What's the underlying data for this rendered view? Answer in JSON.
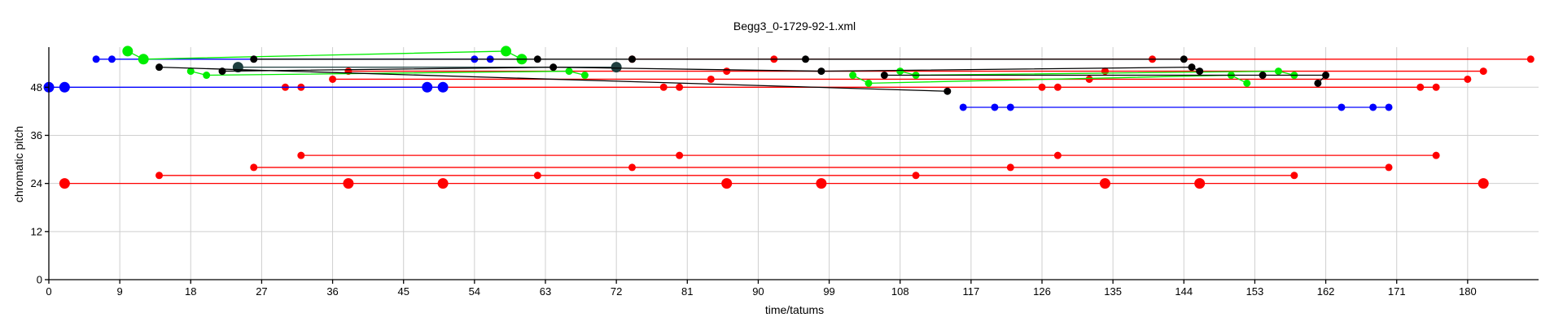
{
  "chart_data": {
    "type": "scatter",
    "title": "Begg3_0-1729-92-1.xml",
    "xlabel": "time/tatums",
    "ylabel": "chromatic pitch",
    "xlim": [
      0,
      189
    ],
    "ylim": [
      0,
      58
    ],
    "x_ticks": [
      0,
      9,
      18,
      27,
      36,
      45,
      54,
      63,
      72,
      81,
      90,
      99,
      108,
      117,
      126,
      135,
      144,
      153,
      162,
      171,
      180
    ],
    "y_ticks": [
      0,
      12,
      24,
      36,
      48
    ],
    "grid": true,
    "colors": {
      "red": "#ff0000",
      "blue": "#0000ff",
      "green": "#00ee00",
      "black": "#000000",
      "dark": "#1f3f3f",
      "grid": "#cfcfcf"
    },
    "series": [
      {
        "color": "red",
        "small_markers": true,
        "points": [
          [
            74,
            55
          ],
          [
            92,
            55
          ],
          [
            140,
            55
          ],
          [
            188,
            55
          ]
        ]
      },
      {
        "color": "red",
        "small_markers": true,
        "points": [
          [
            38,
            52
          ],
          [
            86,
            52
          ],
          [
            134,
            52
          ],
          [
            182,
            52
          ]
        ]
      },
      {
        "color": "red",
        "small_markers": true,
        "points": [
          [
            36,
            50
          ],
          [
            84,
            50
          ],
          [
            132,
            50
          ],
          [
            180,
            50
          ]
        ]
      },
      {
        "color": "red",
        "small_markers": true,
        "points": [
          [
            30,
            48
          ],
          [
            32,
            48
          ],
          [
            78,
            48
          ],
          [
            80,
            48
          ],
          [
            126,
            48
          ],
          [
            128,
            48
          ],
          [
            174,
            48
          ],
          [
            176,
            48
          ]
        ]
      },
      {
        "color": "blue",
        "small_markers": true,
        "points": [
          [
            6,
            55
          ],
          [
            8,
            55
          ],
          [
            54,
            55
          ],
          [
            56,
            55
          ]
        ]
      },
      {
        "color": "blue",
        "small_markers": false,
        "points": [
          [
            0,
            48
          ],
          [
            2,
            48
          ],
          [
            48,
            48
          ],
          [
            50,
            48
          ]
        ]
      },
      {
        "color": "blue",
        "small_markers": true,
        "points": [
          [
            116,
            43
          ],
          [
            120,
            43
          ],
          [
            122,
            43
          ],
          [
            164,
            43
          ],
          [
            168,
            43
          ],
          [
            170,
            43
          ]
        ]
      },
      {
        "color": "green",
        "small_markers": false,
        "points": [
          [
            10,
            57
          ],
          [
            12,
            55
          ],
          [
            58,
            57
          ],
          [
            60,
            55
          ]
        ]
      },
      {
        "color": "green",
        "small_markers": true,
        "points": [
          [
            18,
            52
          ],
          [
            20,
            51
          ],
          [
            66,
            52
          ],
          [
            68,
            51
          ]
        ]
      },
      {
        "color": "green",
        "small_markers": true,
        "points": [
          [
            102,
            51
          ],
          [
            104,
            49
          ],
          [
            150,
            51
          ],
          [
            152,
            49
          ]
        ]
      },
      {
        "color": "green",
        "small_markers": true,
        "points": [
          [
            108,
            52
          ],
          [
            110,
            51
          ],
          [
            156,
            52
          ],
          [
            158,
            51
          ]
        ]
      },
      {
        "color": "dark",
        "small_markers": false,
        "points": [
          [
            24,
            53
          ],
          [
            72,
            53
          ]
        ]
      },
      {
        "color": "black",
        "small_markers": true,
        "points": [
          [
            26,
            55
          ],
          [
            62,
            55
          ],
          [
            74,
            55
          ],
          [
            96,
            55
          ],
          [
            144,
            55
          ]
        ]
      },
      {
        "color": "black",
        "small_markers": true,
        "points": [
          [
            22,
            52
          ],
          [
            64,
            53
          ],
          [
            98,
            52
          ],
          [
            145,
            53
          ],
          [
            146,
            52
          ]
        ]
      },
      {
        "color": "black",
        "small_markers": true,
        "points": [
          [
            106,
            51
          ],
          [
            154,
            51
          ],
          [
            162,
            51
          ],
          [
            161,
            49
          ]
        ]
      },
      {
        "color": "black",
        "small_markers": true,
        "points": [
          [
            14,
            53
          ],
          [
            114,
            47
          ]
        ]
      },
      {
        "color": "red",
        "small_markers": true,
        "points": [
          [
            32,
            31
          ],
          [
            80,
            31
          ],
          [
            128,
            31
          ],
          [
            176,
            31
          ]
        ]
      },
      {
        "color": "red",
        "small_markers": true,
        "points": [
          [
            26,
            28
          ],
          [
            74,
            28
          ],
          [
            122,
            28
          ],
          [
            170,
            28
          ]
        ]
      },
      {
        "color": "red",
        "small_markers": true,
        "points": [
          [
            14,
            26
          ],
          [
            62,
            26
          ],
          [
            110,
            26
          ],
          [
            158,
            26
          ]
        ]
      },
      {
        "color": "red",
        "small_markers": false,
        "points": [
          [
            2,
            24
          ],
          [
            38,
            24
          ],
          [
            50,
            24
          ],
          [
            86,
            24
          ],
          [
            98,
            24
          ],
          [
            134,
            24
          ],
          [
            146,
            24
          ],
          [
            182,
            24
          ]
        ]
      }
    ]
  }
}
